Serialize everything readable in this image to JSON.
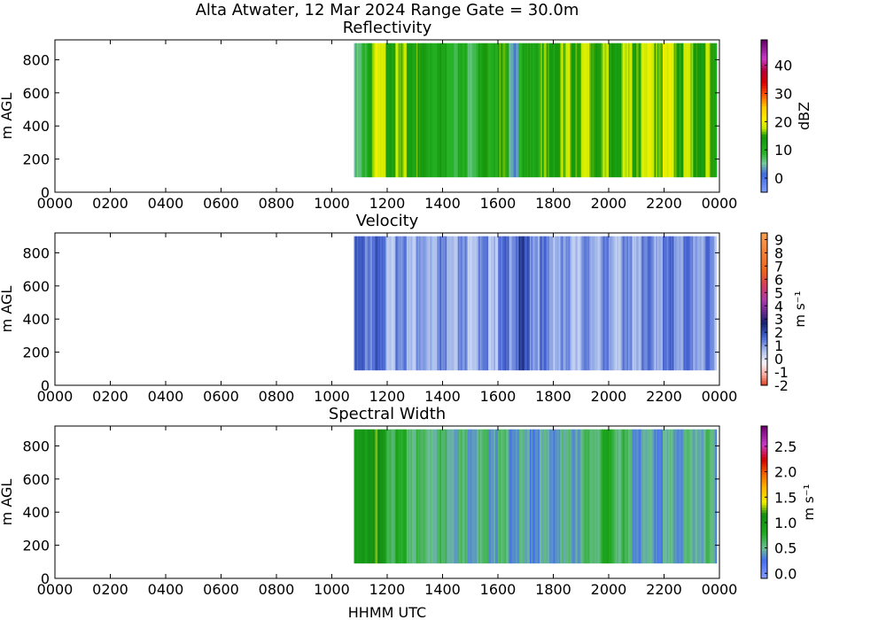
{
  "figure": {
    "title": "Alta Atwater, 12 Mar 2024 Range Gate = 30.0m",
    "xlabel": "HHMM UTC",
    "x_ticks": [
      "0000",
      "0200",
      "0400",
      "0600",
      "0800",
      "1000",
      "1200",
      "1400",
      "1600",
      "1800",
      "2000",
      "2200",
      "0000"
    ]
  },
  "chart_data": [
    {
      "type": "heatmap",
      "title": "Reflectivity",
      "ylabel": "m AGL",
      "xlim_hours": [
        0,
        24
      ],
      "ylim": [
        0,
        920
      ],
      "y_ticks": [
        0,
        200,
        400,
        600,
        800
      ],
      "data_extent": {
        "start_hour": 10.8,
        "end_hour": 23.9,
        "y_min": 90,
        "y_max": 900
      },
      "colorbar": {
        "label": "dBZ",
        "range": [
          -5,
          49
        ],
        "ticks": [
          "0",
          "10",
          "20",
          "30",
          "40"
        ],
        "tick_values": [
          0,
          10,
          20,
          30,
          40
        ]
      },
      "time_profile": [
        {
          "hour": 11.0,
          "value": 5
        },
        {
          "hour": 11.5,
          "value": 18
        },
        {
          "hour": 12.0,
          "value": 16
        },
        {
          "hour": 13.0,
          "value": 14
        },
        {
          "hour": 14.0,
          "value": 12
        },
        {
          "hour": 15.0,
          "value": 9
        },
        {
          "hour": 15.5,
          "value": 12
        },
        {
          "hour": 16.2,
          "value": 14
        },
        {
          "hour": 16.6,
          "value": 3
        },
        {
          "hour": 17.0,
          "value": 13
        },
        {
          "hour": 18.0,
          "value": 15
        },
        {
          "hour": 19.0,
          "value": 17
        },
        {
          "hour": 20.0,
          "value": 15
        },
        {
          "hour": 21.0,
          "value": 17
        },
        {
          "hour": 22.0,
          "value": 18
        },
        {
          "hour": 23.0,
          "value": 16
        },
        {
          "hour": 23.9,
          "value": 14
        }
      ]
    },
    {
      "type": "heatmap",
      "title": "Velocity",
      "ylabel": "m s⁻¹",
      "ylabel_left": "m AGL",
      "xlim_hours": [
        0,
        24
      ],
      "ylim": [
        0,
        920
      ],
      "y_ticks": [
        0,
        200,
        400,
        600,
        800
      ],
      "data_extent": {
        "start_hour": 10.8,
        "end_hour": 23.9,
        "y_min": 90,
        "y_max": 900
      },
      "colorbar": {
        "label": "m s⁻¹",
        "range": [
          -2,
          9.5
        ],
        "ticks": [
          "-2",
          "-1",
          "0",
          "1",
          "2",
          "3",
          "4",
          "5",
          "6",
          "7",
          "8",
          "9"
        ],
        "tick_values": [
          -2,
          -1,
          0,
          1,
          2,
          3,
          4,
          5,
          6,
          7,
          8,
          9
        ]
      },
      "time_profile": [
        {
          "hour": 11.0,
          "value": 1.5
        },
        {
          "hour": 11.5,
          "value": 1.6
        },
        {
          "hour": 12.0,
          "value": 1.0
        },
        {
          "hour": 13.0,
          "value": 0.8
        },
        {
          "hour": 14.0,
          "value": 1.2
        },
        {
          "hour": 15.0,
          "value": 0.9
        },
        {
          "hour": 16.0,
          "value": 1.0
        },
        {
          "hour": 16.8,
          "value": 1.9
        },
        {
          "hour": 17.5,
          "value": 1.2
        },
        {
          "hour": 18.5,
          "value": 0.8
        },
        {
          "hour": 19.5,
          "value": 1.0
        },
        {
          "hour": 20.5,
          "value": 0.9
        },
        {
          "hour": 21.5,
          "value": 1.1
        },
        {
          "hour": 22.5,
          "value": 1.3
        },
        {
          "hour": 23.9,
          "value": 1.0
        }
      ]
    },
    {
      "type": "heatmap",
      "title": "Spectral Width",
      "ylabel": "m s⁻¹",
      "ylabel_left": "m AGL",
      "xlim_hours": [
        0,
        24
      ],
      "ylim": [
        0,
        920
      ],
      "y_ticks": [
        0,
        200,
        400,
        600,
        800
      ],
      "data_extent": {
        "start_hour": 10.8,
        "end_hour": 23.9,
        "y_min": 90,
        "y_max": 900
      },
      "colorbar": {
        "label": "m s⁻¹",
        "range": [
          -0.1,
          2.9
        ],
        "ticks": [
          "0.0",
          "0.5",
          "1.0",
          "1.5",
          "2.0",
          "2.5"
        ],
        "tick_values": [
          0,
          0.5,
          1,
          1.5,
          2,
          2.5
        ]
      },
      "time_profile": [
        {
          "hour": 11.0,
          "value": 0.9
        },
        {
          "hour": 11.5,
          "value": 1.2
        },
        {
          "hour": 12.0,
          "value": 0.8
        },
        {
          "hour": 13.0,
          "value": 0.6
        },
        {
          "hour": 14.0,
          "value": 0.6
        },
        {
          "hour": 15.0,
          "value": 0.5
        },
        {
          "hour": 16.0,
          "value": 0.5
        },
        {
          "hour": 17.0,
          "value": 0.4
        },
        {
          "hour": 18.0,
          "value": 0.4
        },
        {
          "hour": 19.0,
          "value": 0.5
        },
        {
          "hour": 20.0,
          "value": 0.8
        },
        {
          "hour": 21.0,
          "value": 0.4
        },
        {
          "hour": 22.0,
          "value": 0.4
        },
        {
          "hour": 23.0,
          "value": 0.5
        },
        {
          "hour": 23.9,
          "value": 0.5
        }
      ]
    }
  ]
}
